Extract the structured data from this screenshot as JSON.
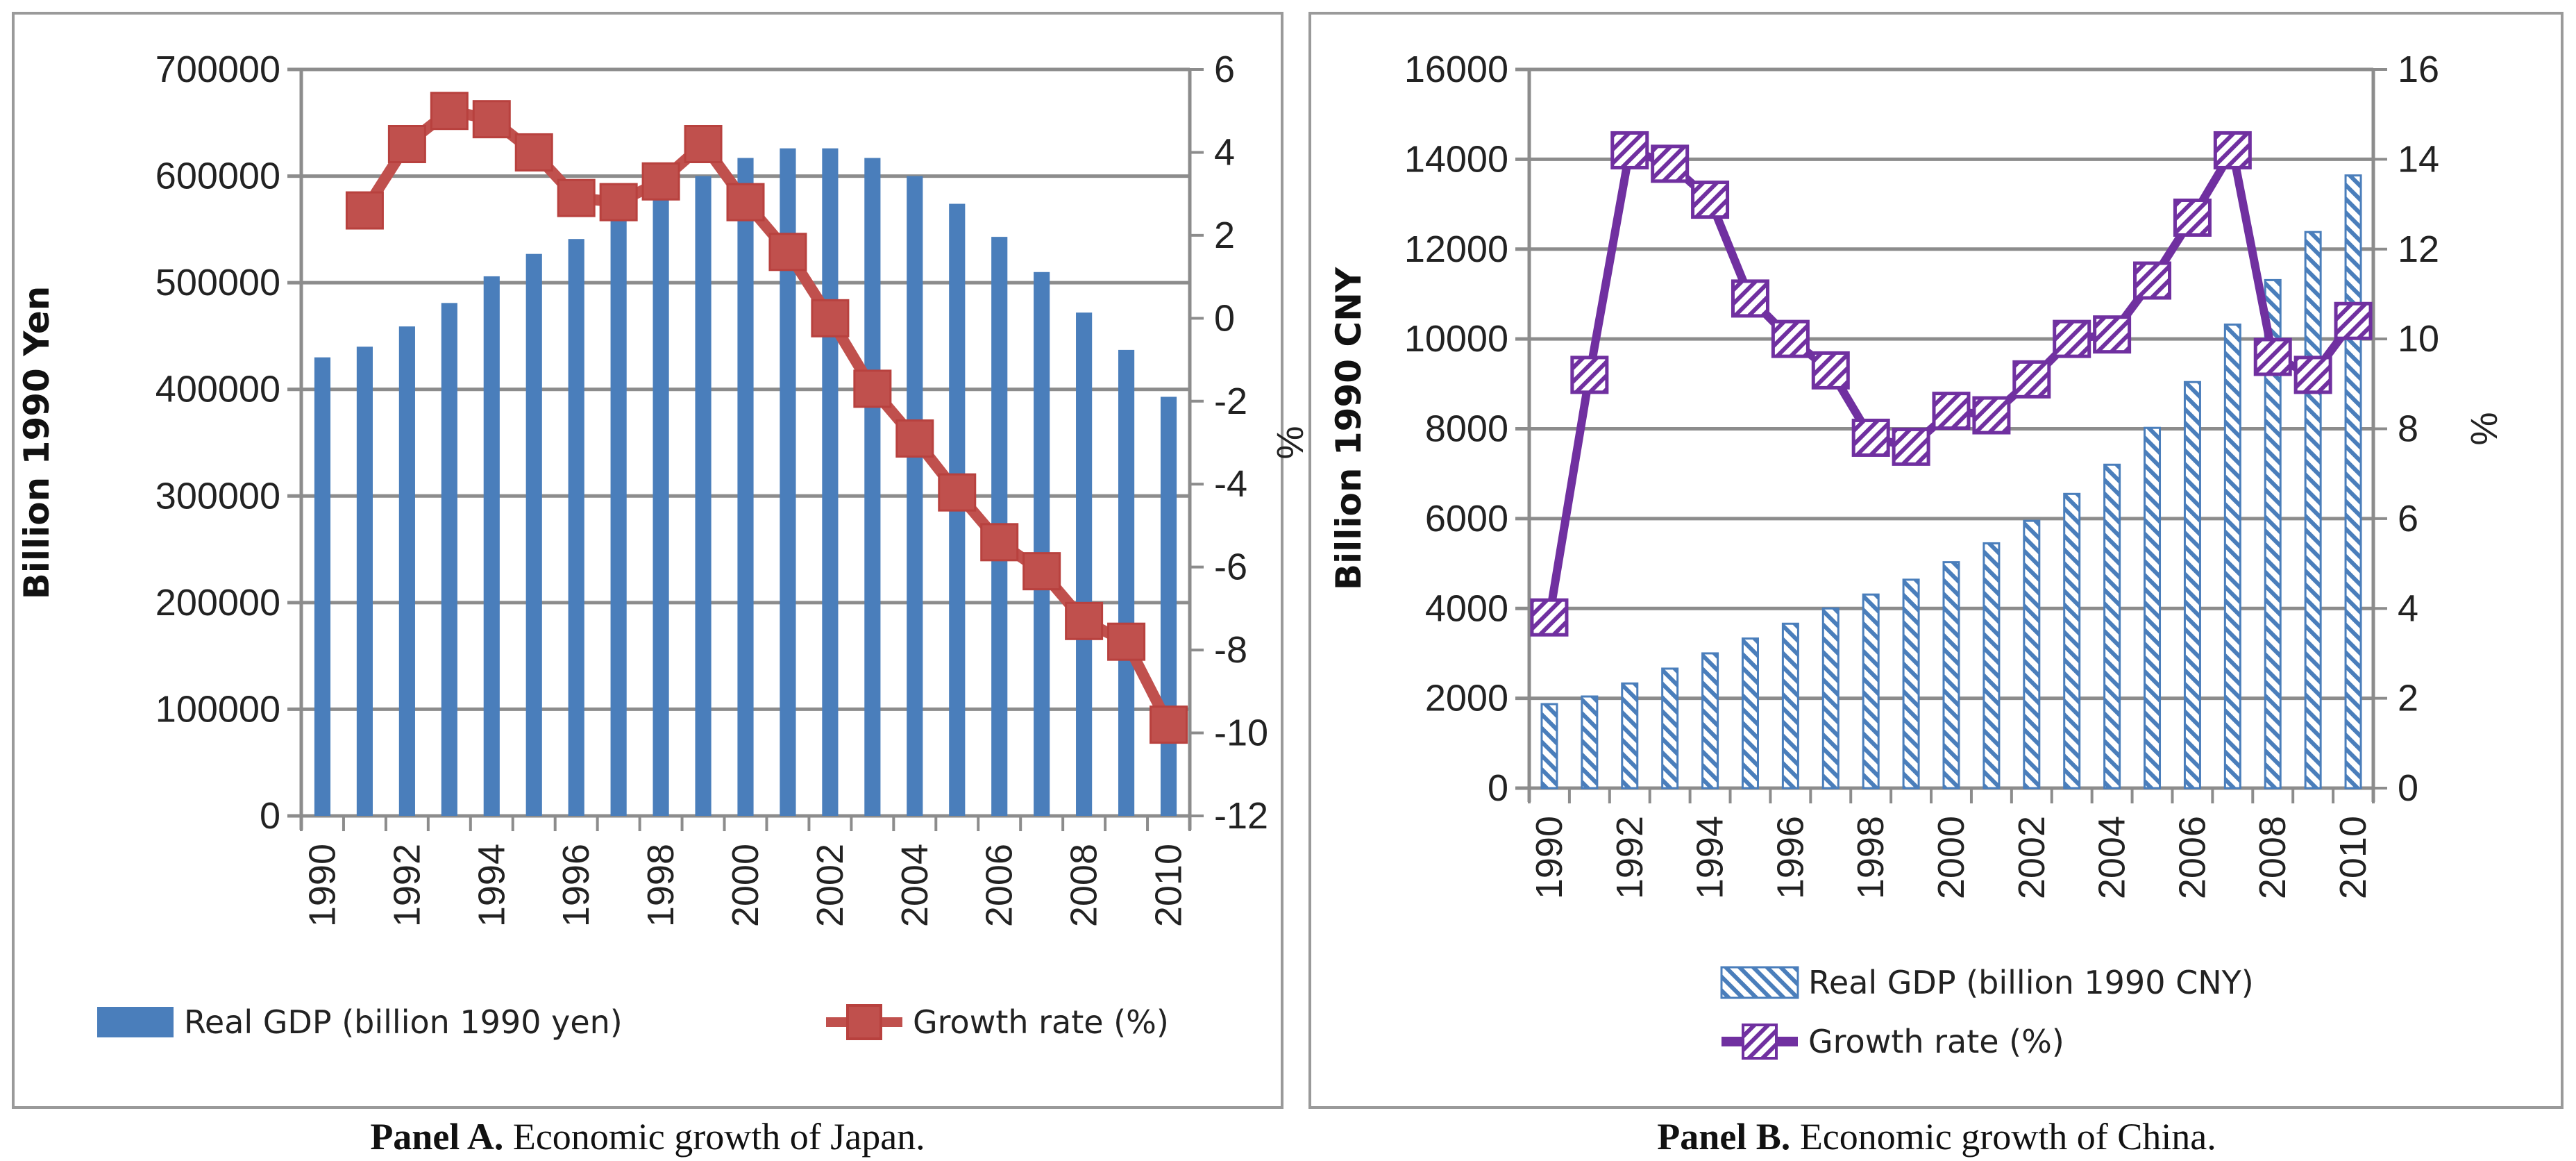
{
  "chart_data": [
    {
      "type": "bar",
      "panel_caption_bold": "Panel A.",
      "panel_caption": " Economic growth of Japan.",
      "ylabel": "Billion 1990 Yen",
      "y2label": "%",
      "ylim": [
        0,
        700000
      ],
      "yticks": [
        "0",
        "100000",
        "200000",
        "300000",
        "400000",
        "500000",
        "600000",
        "700000"
      ],
      "y2lim": [
        -12,
        6
      ],
      "y2ticks": [
        "-12",
        "-10",
        "-8",
        "-6",
        "-4",
        "-2",
        "0",
        "2",
        "4",
        "6"
      ],
      "xticks": [
        "1990",
        "1992",
        "1994",
        "1996",
        "1998",
        "2000",
        "2002",
        "2004",
        "2006",
        "2008",
        "2010"
      ],
      "categories": [
        1990,
        1991,
        1992,
        1993,
        1994,
        1995,
        1996,
        1997,
        1998,
        1999,
        2000,
        2001,
        2002,
        2003,
        2004,
        2005,
        2006,
        2007,
        2008,
        2009,
        2010
      ],
      "legend_position": "bottom",
      "grid": true,
      "series": [
        {
          "name": "Real GDP (billion 1990 yen)",
          "kind": "bar",
          "axis": "left",
          "color": "#4a7ebb",
          "values": [
            430000,
            440000,
            459000,
            481000,
            506000,
            527000,
            541000,
            560000,
            580000,
            600000,
            617000,
            626000,
            626000,
            617000,
            600000,
            574000,
            543000,
            510000,
            472000,
            437000,
            393000
          ]
        },
        {
          "name": "Growth rate (%)",
          "kind": "line",
          "axis": "right",
          "color": "#c0504d",
          "values": [
            null,
            2.6,
            4.2,
            5.0,
            4.8,
            4.0,
            2.9,
            2.8,
            3.3,
            4.2,
            2.8,
            1.6,
            0.0,
            -1.7,
            -2.9,
            -4.2,
            -5.4,
            -6.1,
            -7.3,
            -7.8,
            -9.8
          ]
        }
      ]
    },
    {
      "type": "bar",
      "panel_caption_bold": "Panel B.",
      "panel_caption": " Economic growth of China.",
      "ylabel": "Billion 1990 CNY",
      "y2label": "%",
      "ylim": [
        0,
        16000
      ],
      "yticks": [
        "0",
        "2000",
        "4000",
        "6000",
        "8000",
        "10000",
        "12000",
        "14000",
        "16000"
      ],
      "y2lim": [
        0,
        16
      ],
      "y2ticks": [
        "0",
        "2",
        "4",
        "6",
        "8",
        "10",
        "12",
        "14",
        "16"
      ],
      "xticks": [
        "1990",
        "1992",
        "1994",
        "1996",
        "1998",
        "2000",
        "2002",
        "2004",
        "2006",
        "2008",
        "2010"
      ],
      "categories": [
        1990,
        1991,
        1992,
        1993,
        1994,
        1995,
        1996,
        1997,
        1998,
        1999,
        2000,
        2001,
        2002,
        2003,
        2004,
        2005,
        2006,
        2007,
        2008,
        2009,
        2010
      ],
      "legend_position": "bottom",
      "grid": true,
      "series": [
        {
          "name": "Real GDP (billion 1990 CNY)",
          "kind": "bar",
          "axis": "left",
          "color": "#4a7ebb",
          "values": [
            1870,
            2040,
            2330,
            2660,
            3000,
            3330,
            3660,
            4000,
            4310,
            4640,
            5030,
            5450,
            5950,
            6550,
            7200,
            8020,
            9040,
            10320,
            11310,
            12380,
            13640
          ]
        },
        {
          "name": "Growth rate (%)",
          "kind": "line",
          "axis": "right",
          "color": "#7030a0",
          "values": [
            3.8,
            9.2,
            14.2,
            13.9,
            13.1,
            10.9,
            10.0,
            9.3,
            7.8,
            7.6,
            8.4,
            8.3,
            9.1,
            10.0,
            10.1,
            11.3,
            12.7,
            14.2,
            9.6,
            9.2,
            10.4
          ]
        }
      ]
    }
  ]
}
